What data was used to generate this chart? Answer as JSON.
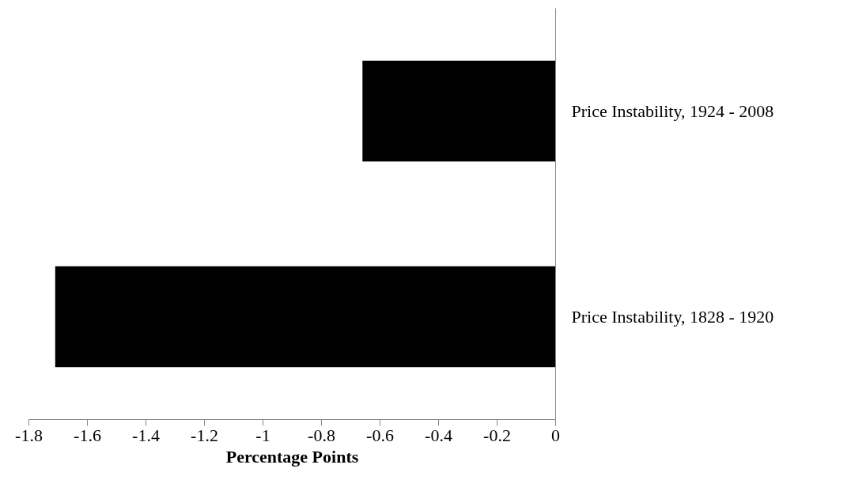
{
  "chart_data": {
    "type": "bar",
    "orientation": "horizontal",
    "categories": [
      "Price Instability, 1924 - 2008",
      "Price Instability, 1828 - 1920"
    ],
    "values": [
      -0.66,
      -1.71
    ],
    "color": "#000000",
    "xlabel": "Percentage Points",
    "xlim": [
      -1.8,
      0
    ],
    "xticks": [
      -1.8,
      -1.6,
      -1.4,
      -1.2,
      -1,
      -0.8,
      -0.6,
      -0.4,
      -0.2,
      0
    ],
    "grid": false
  }
}
